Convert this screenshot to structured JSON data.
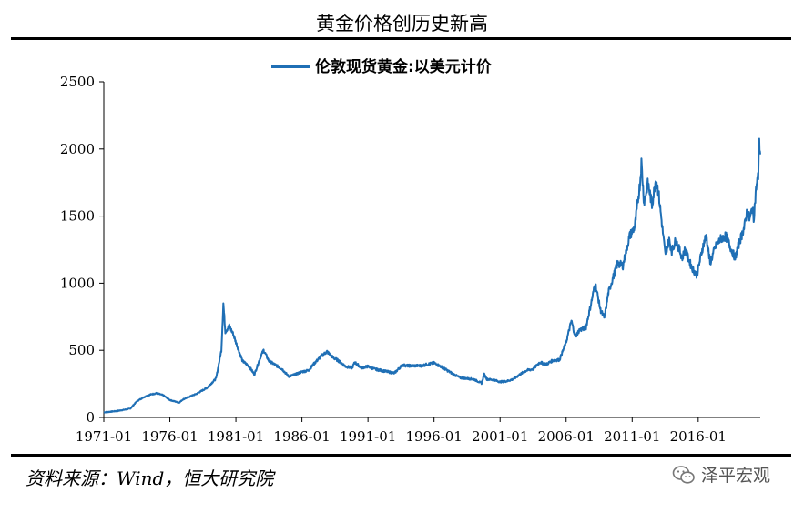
{
  "header": {
    "title": "黄金价格创历史新高"
  },
  "footer": {
    "source": "资料来源：Wind，恒大研究院",
    "watermark": "泽平宏观"
  },
  "colors": {
    "series": "#1f6fb5",
    "axis": "#000000"
  },
  "chart_data": {
    "type": "line",
    "title": "",
    "xlabel": "",
    "ylabel": "",
    "ylim": [
      0,
      2500
    ],
    "xlim": [
      1971.0,
      2020.7
    ],
    "yticks": [
      0,
      500,
      1000,
      1500,
      2000,
      2500
    ],
    "xticks": [
      "1971-01",
      "1976-01",
      "1981-01",
      "1986-01",
      "1991-01",
      "1996-01",
      "2001-01",
      "2006-01",
      "2011-01",
      "2016-01"
    ],
    "grid": false,
    "legend_position": "top-center",
    "series": [
      {
        "name": "伦敦现货黄金:以美元计价",
        "points": [
          [
            1971.0,
            38
          ],
          [
            1972.0,
            48
          ],
          [
            1973.0,
            65
          ],
          [
            1973.5,
            120
          ],
          [
            1974.0,
            150
          ],
          [
            1974.5,
            170
          ],
          [
            1975.0,
            180
          ],
          [
            1975.5,
            165
          ],
          [
            1976.0,
            130
          ],
          [
            1976.7,
            110
          ],
          [
            1977.0,
            135
          ],
          [
            1978.0,
            175
          ],
          [
            1978.8,
            220
          ],
          [
            1979.5,
            290
          ],
          [
            1979.9,
            500
          ],
          [
            1980.05,
            850
          ],
          [
            1980.2,
            640
          ],
          [
            1980.5,
            680
          ],
          [
            1980.8,
            620
          ],
          [
            1981.0,
            560
          ],
          [
            1981.5,
            420
          ],
          [
            1982.0,
            380
          ],
          [
            1982.4,
            320
          ],
          [
            1982.9,
            460
          ],
          [
            1983.1,
            500
          ],
          [
            1983.5,
            420
          ],
          [
            1984.0,
            390
          ],
          [
            1984.5,
            360
          ],
          [
            1985.0,
            305
          ],
          [
            1985.5,
            320
          ],
          [
            1986.0,
            340
          ],
          [
            1986.5,
            350
          ],
          [
            1987.0,
            410
          ],
          [
            1987.5,
            460
          ],
          [
            1987.9,
            490
          ],
          [
            1988.3,
            450
          ],
          [
            1988.8,
            420
          ],
          [
            1989.3,
            380
          ],
          [
            1989.8,
            370
          ],
          [
            1990.0,
            410
          ],
          [
            1990.5,
            370
          ],
          [
            1991.0,
            380
          ],
          [
            1991.5,
            360
          ],
          [
            1992.0,
            350
          ],
          [
            1992.5,
            340
          ],
          [
            1993.0,
            330
          ],
          [
            1993.6,
            390
          ],
          [
            1994.0,
            385
          ],
          [
            1995.0,
            385
          ],
          [
            1996.0,
            405
          ],
          [
            1996.5,
            380
          ],
          [
            1997.0,
            350
          ],
          [
            1997.5,
            320
          ],
          [
            1998.0,
            295
          ],
          [
            1998.5,
            290
          ],
          [
            1999.0,
            285
          ],
          [
            1999.6,
            255
          ],
          [
            1999.8,
            320
          ],
          [
            2000.0,
            285
          ],
          [
            2000.5,
            280
          ],
          [
            2001.0,
            265
          ],
          [
            2001.5,
            270
          ],
          [
            2002.0,
            285
          ],
          [
            2002.5,
            320
          ],
          [
            2003.0,
            350
          ],
          [
            2003.5,
            360
          ],
          [
            2004.0,
            410
          ],
          [
            2004.5,
            395
          ],
          [
            2005.0,
            425
          ],
          [
            2005.5,
            430
          ],
          [
            2006.0,
            560
          ],
          [
            2006.4,
            720
          ],
          [
            2006.7,
            600
          ],
          [
            2007.0,
            650
          ],
          [
            2007.5,
            670
          ],
          [
            2008.0,
            900
          ],
          [
            2008.2,
            1000
          ],
          [
            2008.6,
            800
          ],
          [
            2008.9,
            740
          ],
          [
            2009.2,
            930
          ],
          [
            2009.9,
            1150
          ],
          [
            2010.3,
            1130
          ],
          [
            2010.8,
            1350
          ],
          [
            2011.2,
            1420
          ],
          [
            2011.6,
            1750
          ],
          [
            2011.7,
            1900
          ],
          [
            2011.9,
            1600
          ],
          [
            2012.2,
            1750
          ],
          [
            2012.5,
            1580
          ],
          [
            2012.8,
            1780
          ],
          [
            2013.0,
            1670
          ],
          [
            2013.3,
            1400
          ],
          [
            2013.5,
            1220
          ],
          [
            2013.8,
            1320
          ],
          [
            2014.0,
            1240
          ],
          [
            2014.3,
            1320
          ],
          [
            2014.8,
            1190
          ],
          [
            2015.0,
            1250
          ],
          [
            2015.5,
            1120
          ],
          [
            2015.9,
            1060
          ],
          [
            2016.3,
            1250
          ],
          [
            2016.6,
            1360
          ],
          [
            2016.9,
            1150
          ],
          [
            2017.3,
            1270
          ],
          [
            2017.7,
            1330
          ],
          [
            2018.1,
            1350
          ],
          [
            2018.6,
            1230
          ],
          [
            2018.8,
            1190
          ],
          [
            2019.1,
            1300
          ],
          [
            2019.5,
            1420
          ],
          [
            2019.7,
            1540
          ],
          [
            2019.9,
            1470
          ],
          [
            2020.1,
            1570
          ],
          [
            2020.2,
            1480
          ],
          [
            2020.4,
            1720
          ],
          [
            2020.55,
            1800
          ],
          [
            2020.6,
            2060
          ],
          [
            2020.7,
            1960
          ]
        ]
      }
    ]
  }
}
